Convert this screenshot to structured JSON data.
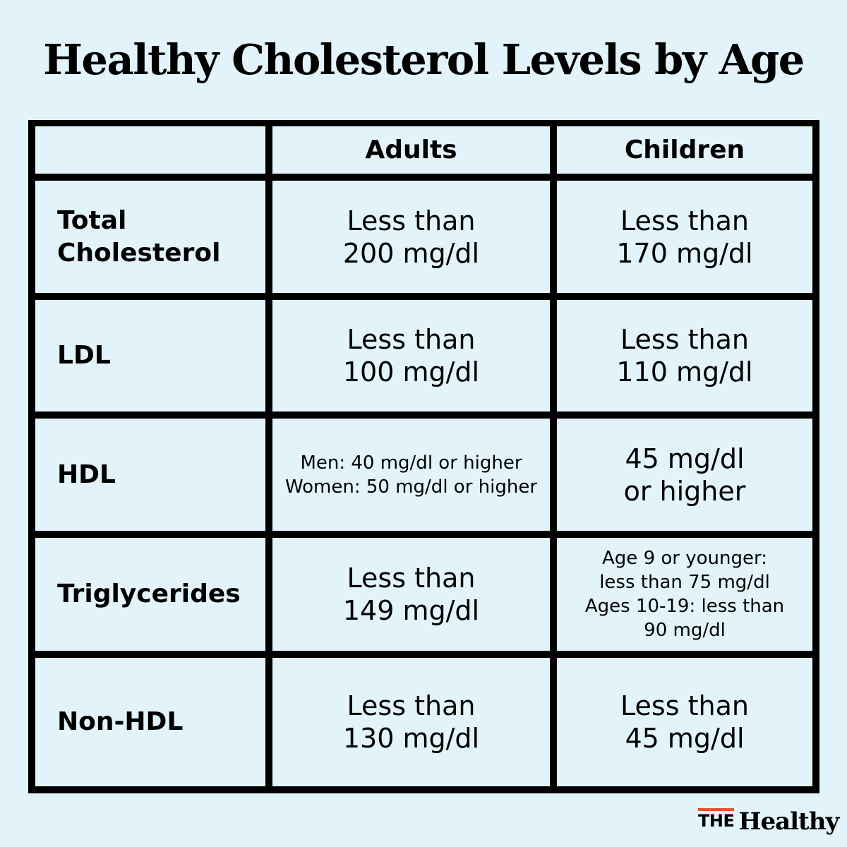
{
  "title": "Healthy Cholesterol Levels by Age",
  "table": {
    "columns": [
      "",
      "Adults",
      "Children"
    ],
    "rows": [
      {
        "label": [
          "Total",
          "Cholesterol"
        ],
        "adults": [
          "Less than",
          "200 mg/dl"
        ],
        "children": [
          "Less than",
          "170 mg/dl"
        ]
      },
      {
        "label": [
          "LDL"
        ],
        "adults": [
          "Less than",
          "100 mg/dl"
        ],
        "children": [
          "Less than",
          "110 mg/dl"
        ]
      },
      {
        "label": [
          "HDL"
        ],
        "adults": [
          "Men: 40 mg/dl or higher",
          "Women: 50 mg/dl or higher"
        ],
        "children": [
          "45 mg/dl",
          "or higher"
        ]
      },
      {
        "label": [
          "Triglycerides"
        ],
        "adults": [
          "Less than",
          "149 mg/dl"
        ],
        "children": [
          "Age 9 or younger:",
          "less than 75 mg/dl",
          "Ages 10-19: less than",
          "90 mg/dl"
        ]
      },
      {
        "label": [
          "Non-HDL"
        ],
        "adults": [
          "Less than",
          "130 mg/dl"
        ],
        "children": [
          "Less than",
          "45 mg/dl"
        ]
      }
    ]
  },
  "brand": {
    "the": "THE",
    "name": "Healthy",
    "accent_color": "#e8542a"
  },
  "colors": {
    "background": "#e2f3f9",
    "grid_lines": "#000000"
  }
}
